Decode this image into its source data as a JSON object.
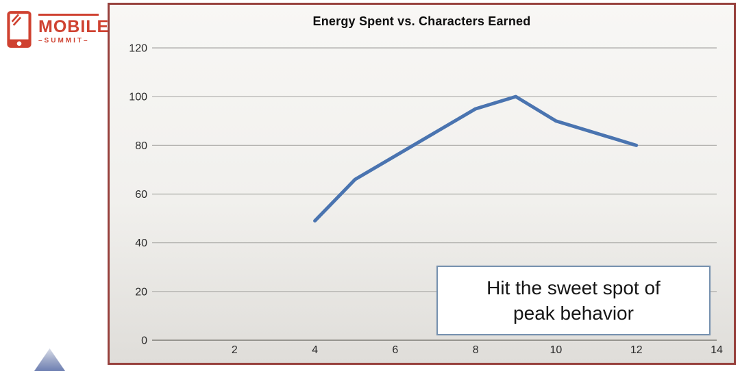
{
  "brand": {
    "name": "MOBILE",
    "tagline": "–SUMMIT–",
    "color": "#CF4130"
  },
  "chart_data": {
    "type": "line",
    "title": "Energy Spent vs. Characters Earned",
    "x": [
      4,
      5,
      8,
      9,
      10,
      12
    ],
    "y": [
      49,
      66,
      95,
      100,
      90,
      80
    ],
    "xlim": [
      0,
      14
    ],
    "ylim": [
      0,
      120
    ],
    "x_ticks": [
      2,
      4,
      6,
      8,
      10,
      12,
      14
    ],
    "y_ticks": [
      0,
      20,
      40,
      60,
      80,
      100,
      120
    ],
    "grid": "horizontal",
    "legend": "none",
    "line_color": "#4A74B0"
  },
  "annotation": {
    "lines": [
      "Hit the sweet spot of",
      "peak behavior"
    ]
  },
  "colors": {
    "panel_border": "#97413D",
    "grid": "#ABAAA7",
    "axis": "#96958F",
    "callout_border": "#7590AE",
    "triangle_top": "#D9DDE9",
    "triangle_bottom": "#6D7FB2"
  }
}
